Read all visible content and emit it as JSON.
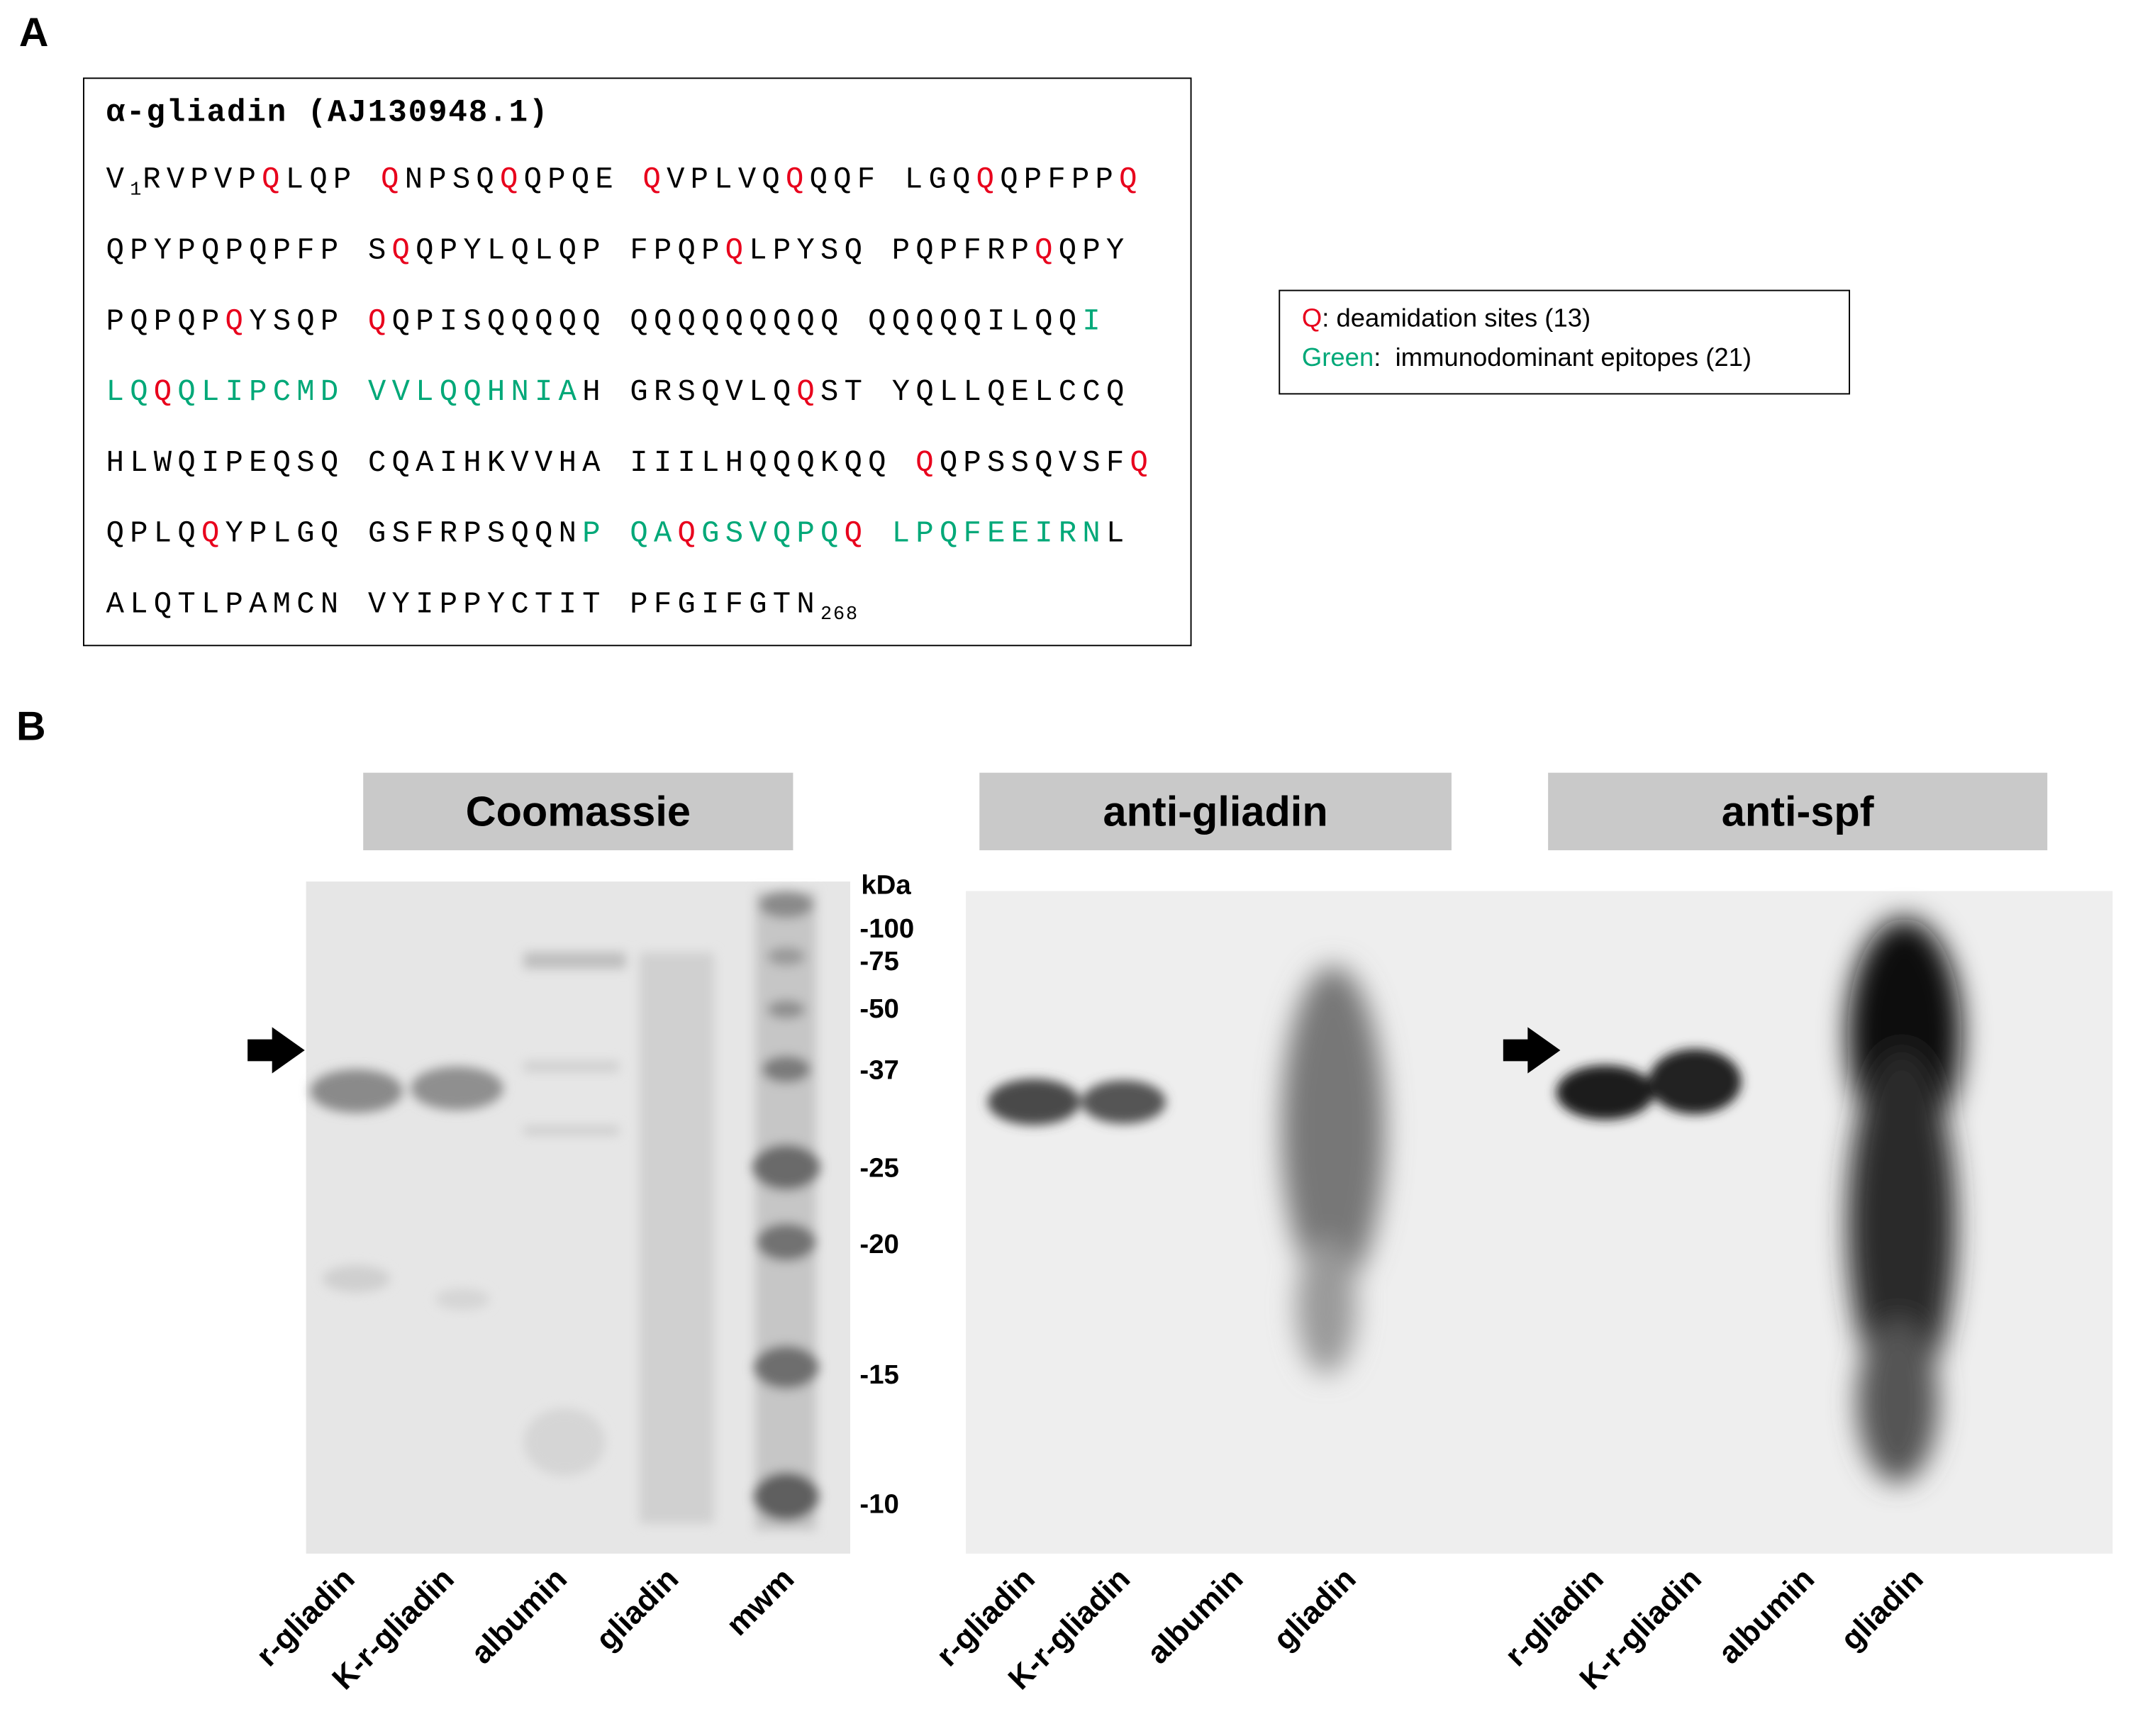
{
  "panel_a": {
    "label": "A",
    "title": "α-gliadin (AJ130948.1)",
    "sequence": [
      [
        {
          "text": "V",
          "style": "plain"
        },
        {
          "text": "1",
          "style": "sub"
        },
        {
          "text": "RVPVP",
          "style": "plain"
        },
        {
          "text": "Q",
          "style": "red"
        },
        {
          "text": "LQP ",
          "style": "plain"
        },
        {
          "text": "Q",
          "style": "red"
        },
        {
          "text": "NPSQ",
          "style": "plain"
        },
        {
          "text": "Q",
          "style": "red"
        },
        {
          "text": "QPQE ",
          "style": "plain"
        },
        {
          "text": "Q",
          "style": "red"
        },
        {
          "text": "VPLVQ",
          "style": "plain"
        },
        {
          "text": "Q",
          "style": "red"
        },
        {
          "text": "QQF LGQ",
          "style": "plain"
        },
        {
          "text": "Q",
          "style": "red"
        },
        {
          "text": "QPFPP",
          "style": "plain"
        },
        {
          "text": "Q",
          "style": "red"
        }
      ],
      [
        {
          "text": "QPYPQPQPFP S",
          "style": "plain"
        },
        {
          "text": "Q",
          "style": "red"
        },
        {
          "text": "QPYLQLQP FPQP",
          "style": "plain"
        },
        {
          "text": "Q",
          "style": "red"
        },
        {
          "text": "LPYSQ PQPFRP",
          "style": "plain"
        },
        {
          "text": "Q",
          "style": "red"
        },
        {
          "text": "QPY",
          "style": "plain"
        }
      ],
      [
        {
          "text": "PQPQP",
          "style": "plain"
        },
        {
          "text": "Q",
          "style": "red"
        },
        {
          "text": "YSQP ",
          "style": "plain"
        },
        {
          "text": "Q",
          "style": "red"
        },
        {
          "text": "QPISQQQQQ QQQQQQQQQ QQQQQILQQ",
          "style": "plain"
        },
        {
          "text": "I",
          "style": "green"
        }
      ],
      [
        {
          "text": "LQ",
          "style": "green"
        },
        {
          "text": "Q",
          "style": "red"
        },
        {
          "text": "QLIPCMD VVLQQHNIA",
          "style": "green"
        },
        {
          "text": "H GRSQVLQ",
          "style": "plain"
        },
        {
          "text": "Q",
          "style": "red"
        },
        {
          "text": "ST YQLLQELCCQ",
          "style": "plain"
        }
      ],
      [
        {
          "text": "HLWQIPEQSQ CQAIHKVVHA IIILHQQQKQQ ",
          "style": "plain"
        },
        {
          "text": "Q",
          "style": "red"
        },
        {
          "text": "QPSSQVSF",
          "style": "plain"
        },
        {
          "text": "Q",
          "style": "red"
        }
      ],
      [
        {
          "text": "QPLQ",
          "style": "plain"
        },
        {
          "text": "Q",
          "style": "red"
        },
        {
          "text": "YPLGQ GSFRPSQQN",
          "style": "plain"
        },
        {
          "text": "P QA",
          "style": "green"
        },
        {
          "text": "Q",
          "style": "red"
        },
        {
          "text": "GSVQPQ",
          "style": "green"
        },
        {
          "text": "Q",
          "style": "red"
        },
        {
          "text": " ",
          "style": "plain"
        },
        {
          "text": "LPQFEEIRN",
          "style": "green"
        },
        {
          "text": "L",
          "style": "plain"
        }
      ],
      [
        {
          "text": "ALQTLPAMCN VYIPPYCTIT PFGIFGTN",
          "style": "plain"
        },
        {
          "text": "268",
          "style": "sub"
        }
      ]
    ]
  },
  "legend": [
    {
      "key": "Q",
      "style": "red",
      "text": ": deamidation sites (13)"
    },
    {
      "key": "Green",
      "style": "green",
      "text": ":  immunodominant epitopes (21)"
    }
  ],
  "panel_b": {
    "label": "B",
    "blots": [
      {
        "title": "Coomassie",
        "lanes": [
          "r-gliadin",
          "K-r-gliadin",
          "albumin",
          "gliadin",
          "mwm"
        ]
      },
      {
        "title": "anti-gliadin",
        "lanes": [
          "r-gliadin",
          "K-r-gliadin",
          "albumin",
          "gliadin"
        ]
      },
      {
        "title": "anti-spf",
        "lanes": [
          "r-gliadin",
          "K-r-gliadin",
          "albumin",
          "gliadin"
        ]
      }
    ],
    "markers": {
      "unit": "kDa",
      "labels": [
        "-100",
        "-75",
        "-50",
        "-37",
        "-25",
        "-20",
        "-15",
        "-10"
      ]
    }
  }
}
